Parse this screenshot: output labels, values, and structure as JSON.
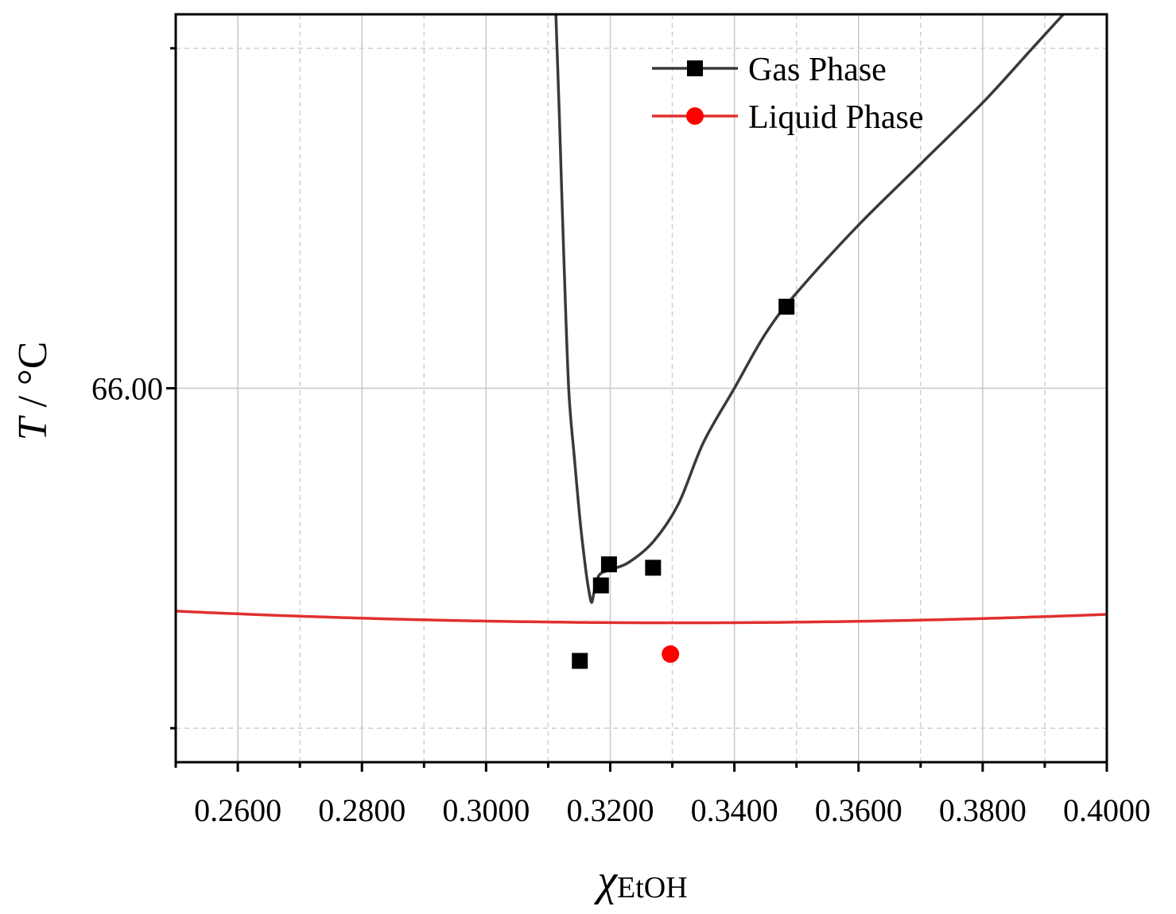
{
  "chart_data": {
    "type": "line",
    "title": "",
    "xlabel": {
      "symbol": "χ",
      "subscript": "EtOH"
    },
    "ylabel": {
      "symbol": "T",
      "unit": " / °C"
    },
    "xlim": [
      0.25,
      0.4
    ],
    "ylim": [
      65.45,
      66.55
    ],
    "x_ticks": [
      "0.2600",
      "0.2800",
      "0.3000",
      "0.3200",
      "0.3400",
      "0.3600",
      "0.3800",
      "0.4000"
    ],
    "x_tick_values": [
      0.26,
      0.28,
      0.3,
      0.32,
      0.34,
      0.36,
      0.38,
      0.4
    ],
    "x_minor_ticks": [
      0.25,
      0.27,
      0.29,
      0.31,
      0.33,
      0.35,
      0.37,
      0.39
    ],
    "y_ticks": [
      "66.00"
    ],
    "y_tick_values": [
      66.0
    ],
    "y_gridlines": [
      65.5,
      66.0,
      66.5
    ],
    "grid": true,
    "legend_position": "top-right",
    "colors": {
      "gas": "#3a3a3a",
      "liquid": "#e03030",
      "gas_marker": "#000000",
      "liquid_marker": "#ff0000"
    },
    "series": [
      {
        "name": "Gas Phase",
        "key": "gas",
        "marker": "square",
        "points": [
          {
            "x": 0.3185,
            "y": 65.71
          },
          {
            "x": 0.3198,
            "y": 65.741
          },
          {
            "x": 0.3269,
            "y": 65.736
          },
          {
            "x": 0.3484,
            "y": 66.12
          },
          {
            "x": 0.3151,
            "y": 65.599
          }
        ],
        "curve": [
          {
            "x": 0.3112,
            "y": 66.56
          },
          {
            "x": 0.3118,
            "y": 66.4
          },
          {
            "x": 0.3125,
            "y": 66.2
          },
          {
            "x": 0.3133,
            "y": 66.0
          },
          {
            "x": 0.3142,
            "y": 65.9
          },
          {
            "x": 0.3152,
            "y": 65.8
          },
          {
            "x": 0.3161,
            "y": 65.73
          },
          {
            "x": 0.3166,
            "y": 65.7
          },
          {
            "x": 0.317,
            "y": 65.685
          },
          {
            "x": 0.3174,
            "y": 65.7
          },
          {
            "x": 0.3182,
            "y": 65.725
          },
          {
            "x": 0.32,
            "y": 65.733
          },
          {
            "x": 0.323,
            "y": 65.744
          },
          {
            "x": 0.327,
            "y": 65.775
          },
          {
            "x": 0.331,
            "y": 65.83
          },
          {
            "x": 0.335,
            "y": 65.92
          },
          {
            "x": 0.34,
            "y": 66.0
          },
          {
            "x": 0.345,
            "y": 66.08
          },
          {
            "x": 0.35,
            "y": 66.14
          },
          {
            "x": 0.36,
            "y": 66.24
          },
          {
            "x": 0.37,
            "y": 66.33
          },
          {
            "x": 0.38,
            "y": 66.42
          },
          {
            "x": 0.388,
            "y": 66.5
          },
          {
            "x": 0.393,
            "y": 66.55
          }
        ]
      },
      {
        "name": "Liquid Phase",
        "key": "liquid",
        "marker": "circle",
        "points": [
          {
            "x": 0.3297,
            "y": 65.609
          }
        ],
        "curve_model": {
          "vertex_x": 0.331,
          "vertex_y": 65.655,
          "curvature": 2.62
        }
      }
    ]
  }
}
